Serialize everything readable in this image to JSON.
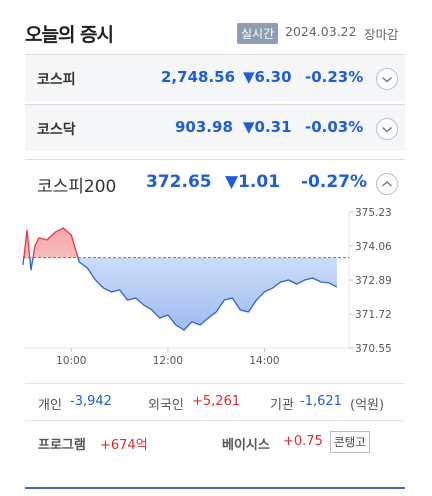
{
  "header": {
    "title": "오늘의 증시",
    "badge": "실시간",
    "date": "2024.03.22",
    "status": "장마감"
  },
  "indices": [
    {
      "name": "코스피",
      "value": "2,748.56",
      "change": "▼6.30",
      "percent": "-0.23%"
    },
    {
      "name": "코스닥",
      "value": "903.98",
      "change": "▼0.31",
      "percent": "-0.03%"
    },
    {
      "name": "코스피200",
      "value": "372.65",
      "change": "▼1.01",
      "percent": "-0.27%"
    }
  ],
  "chart_data": {
    "type": "line",
    "x": [
      "09:00",
      "09:05",
      "09:10",
      "09:15",
      "09:20",
      "09:30",
      "09:40",
      "09:50",
      "10:00",
      "10:10",
      "10:20",
      "10:30",
      "10:40",
      "10:50",
      "11:00",
      "11:10",
      "11:20",
      "11:30",
      "11:40",
      "11:50",
      "12:00",
      "12:10",
      "12:20",
      "12:30",
      "12:40",
      "12:50",
      "13:00",
      "13:10",
      "13:20",
      "13:30",
      "13:40",
      "13:50",
      "14:00",
      "14:10",
      "14:20",
      "14:30",
      "14:40",
      "14:50",
      "15:00",
      "15:10",
      "15:20",
      "15:30"
    ],
    "values": [
      373.41,
      374.61,
      373.23,
      374.09,
      374.34,
      374.27,
      374.54,
      374.68,
      374.44,
      373.51,
      373.3,
      372.89,
      372.61,
      372.48,
      372.55,
      372.2,
      372.27,
      372.03,
      371.86,
      371.58,
      371.69,
      371.34,
      371.17,
      371.45,
      371.34,
      371.58,
      371.79,
      372.2,
      372.27,
      371.86,
      371.79,
      372.2,
      372.48,
      372.61,
      372.82,
      372.89,
      372.75,
      372.89,
      372.96,
      372.82,
      372.79,
      372.65
    ],
    "base_value": 373.66,
    "up_color": "#e8383d",
    "down_color": "#2f63d1",
    "xlim": [
      "09:00",
      "15:45"
    ],
    "xticks": [
      "10:00",
      "12:00",
      "14:00"
    ],
    "ylim": [
      370.55,
      375.23
    ],
    "yticks": [
      375.23,
      374.06,
      372.89,
      371.72,
      370.55
    ]
  },
  "investors": [
    {
      "name": "개인",
      "value": "-3,942"
    },
    {
      "name": "외국인",
      "value": "+5,261"
    },
    {
      "name": "기관",
      "value": "-1,621"
    }
  ],
  "investors_unit": "(억원)",
  "program": {
    "label": "프로그램",
    "value": "+674억"
  },
  "basis": {
    "label": "베이시스",
    "value": "+0.75",
    "badge": "콘탱고"
  }
}
